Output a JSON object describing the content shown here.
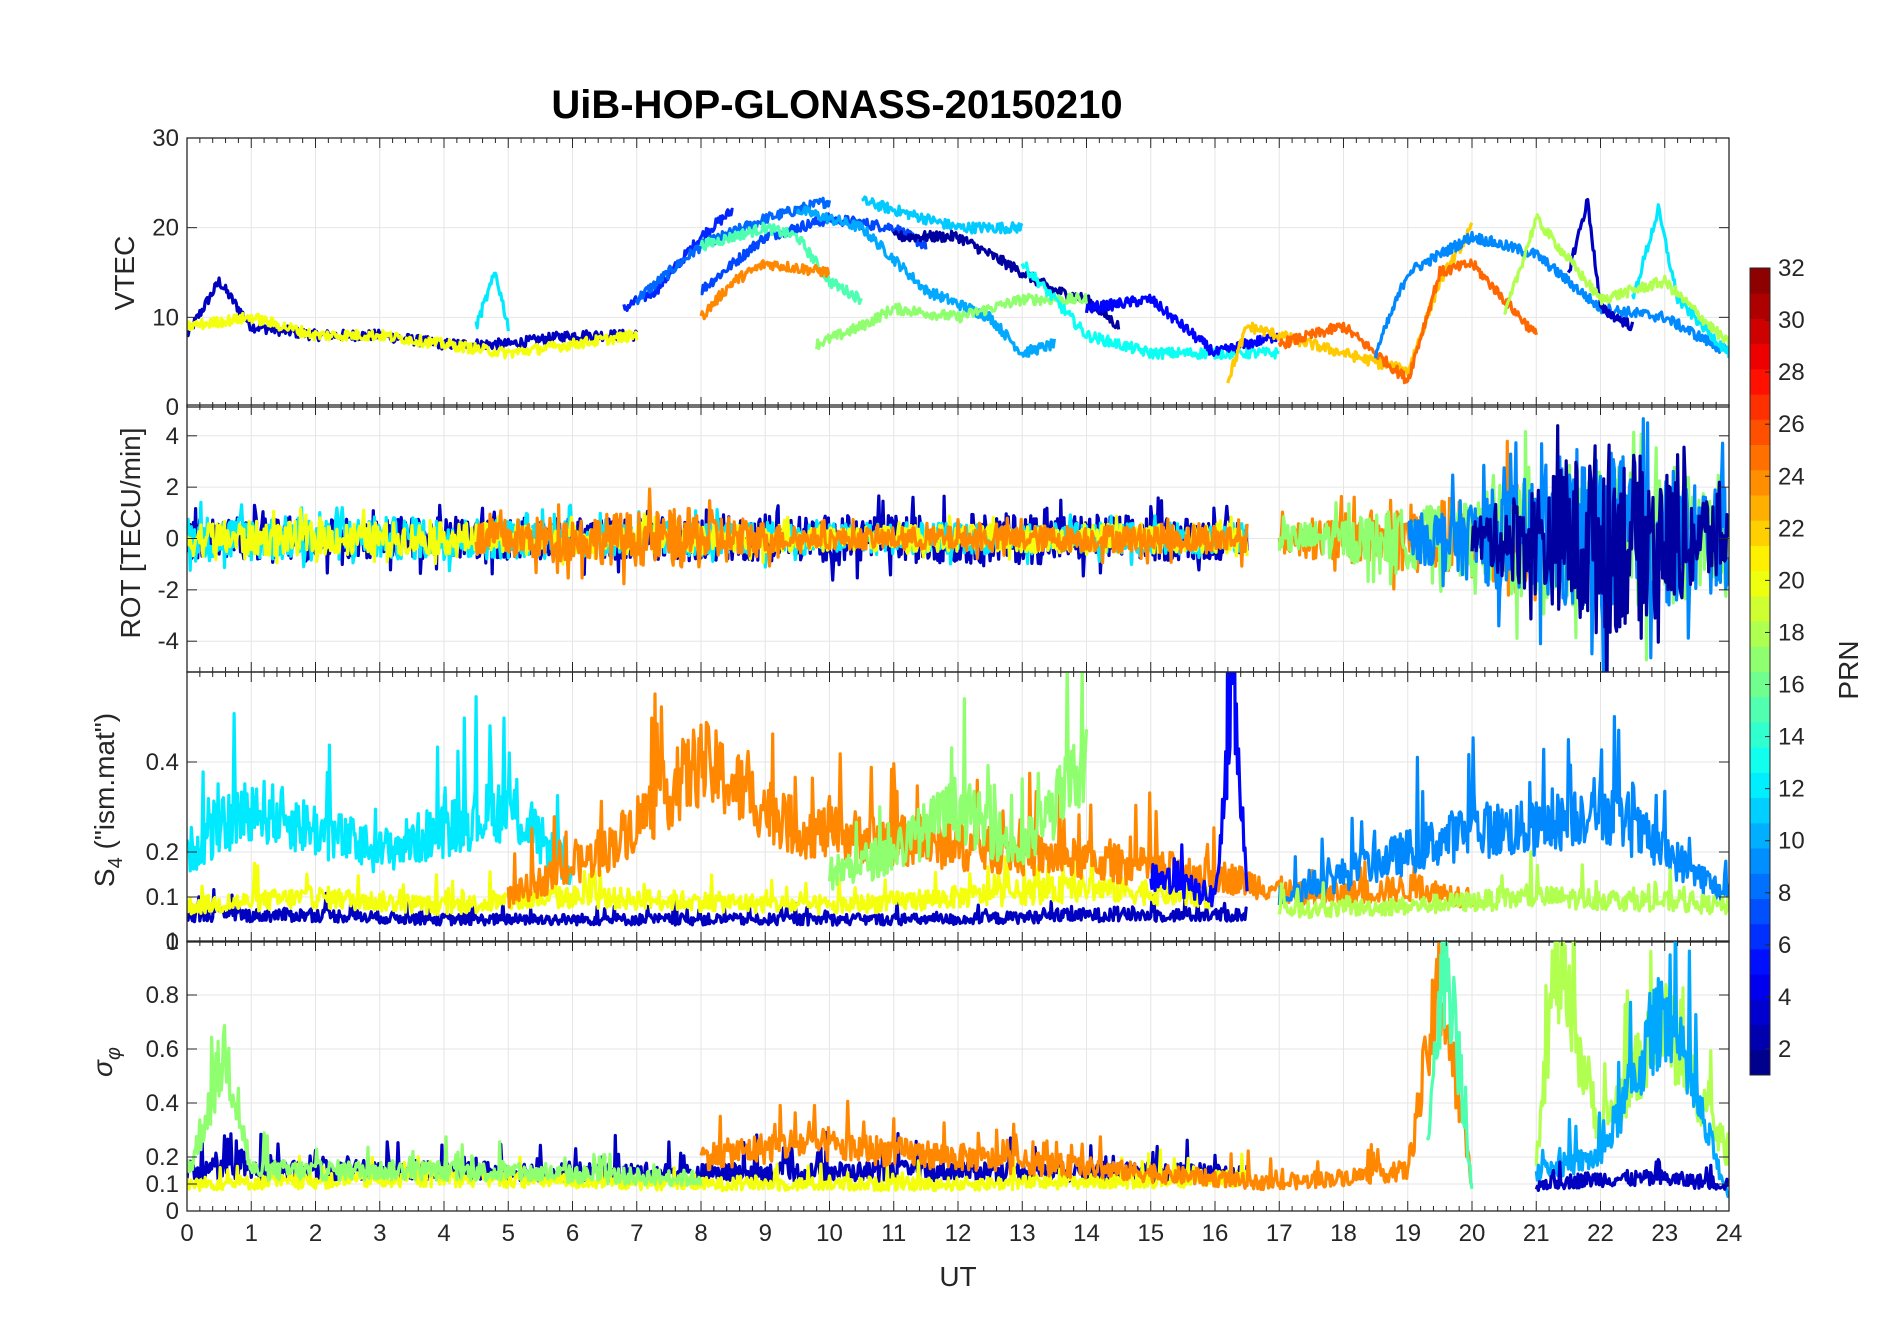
{
  "figure": {
    "title": "UiB-HOP-GLONASS-20150210",
    "xlabel": "UT",
    "x_ticks": [
      "0",
      "1",
      "2",
      "3",
      "4",
      "5",
      "6",
      "7",
      "8",
      "9",
      "10",
      "11",
      "12",
      "13",
      "14",
      "15",
      "16",
      "17",
      "18",
      "19",
      "20",
      "21",
      "22",
      "23",
      "24"
    ],
    "x_range": [
      0,
      24
    ]
  },
  "colorbar": {
    "label": "PRN",
    "range": [
      1,
      32
    ],
    "ticks": [
      "2",
      "4",
      "6",
      "8",
      "10",
      "12",
      "14",
      "16",
      "18",
      "20",
      "22",
      "24",
      "26",
      "28",
      "30",
      "32"
    ],
    "colormap": "jet",
    "levels": 32
  },
  "chart_data": [
    {
      "type": "line",
      "panel": "vtec",
      "ylabel": "VTEC",
      "ylim": [
        0,
        30
      ],
      "y_ticks": [
        "0",
        "10",
        "20",
        "30"
      ],
      "grid": true,
      "series": [
        {
          "prn": 3,
          "x": [
            0,
            0.5,
            1,
            2,
            3,
            4,
            5,
            6,
            6.5,
            7
          ],
          "y": [
            8,
            14,
            9,
            8,
            8,
            7,
            7,
            8,
            8,
            8
          ]
        },
        {
          "prn": 6,
          "x": [
            6.8,
            7.3,
            8,
            8.5
          ],
          "y": [
            11,
            13,
            19,
            22
          ]
        },
        {
          "prn": 8,
          "x": [
            7,
            8,
            9,
            9.5,
            10
          ],
          "y": [
            12,
            18,
            21,
            22,
            23
          ]
        },
        {
          "prn": 7,
          "x": [
            8,
            9,
            10,
            11,
            11.5
          ],
          "y": [
            13,
            19,
            21,
            20,
            18
          ]
        },
        {
          "prn": 11,
          "x": [
            10.5,
            11.5,
            12,
            13
          ],
          "y": [
            23,
            21,
            20,
            20
          ]
        },
        {
          "prn": 10,
          "x": [
            9.5,
            10.5,
            11.5,
            12.5,
            13,
            13.5
          ],
          "y": [
            22,
            20,
            13,
            10,
            6,
            7
          ]
        },
        {
          "prn": 2,
          "x": [
            11,
            12,
            12.5,
            13,
            13.5,
            14,
            14.5
          ],
          "y": [
            19,
            19,
            17,
            15,
            13,
            12,
            9
          ]
        },
        {
          "prn": 15,
          "x": [
            8,
            9,
            9.5,
            10,
            10.5
          ],
          "y": [
            18,
            20,
            19,
            14,
            12
          ]
        },
        {
          "prn": 17,
          "x": [
            9.8,
            10.5,
            11,
            12,
            13,
            14
          ],
          "y": [
            7,
            9,
            11,
            10,
            12,
            12
          ]
        },
        {
          "prn": 24,
          "x": [
            8,
            8.5,
            9,
            10
          ],
          "y": [
            10,
            14,
            16,
            15
          ]
        },
        {
          "prn": 12,
          "x": [
            4.5,
            4.8,
            5
          ],
          "y": [
            9,
            15,
            9
          ]
        },
        {
          "prn": 13,
          "x": [
            13,
            14,
            15,
            16,
            17
          ],
          "y": [
            16,
            8,
            6,
            6,
            6
          ]
        },
        {
          "prn": 5,
          "x": [
            14,
            15,
            16,
            17
          ],
          "y": [
            11,
            12,
            6,
            8
          ]
        },
        {
          "prn": 22,
          "x": [
            16.2,
            16.5,
            17,
            18,
            19,
            19.5,
            20
          ],
          "y": [
            3,
            9,
            8,
            6,
            4,
            14,
            20
          ]
        },
        {
          "prn": 25,
          "x": [
            17,
            18,
            19,
            19.5,
            20,
            21
          ],
          "y": [
            7,
            9,
            3,
            15,
            16,
            8
          ]
        },
        {
          "prn": 9,
          "x": [
            18.5,
            19,
            20,
            21,
            22,
            23,
            24
          ],
          "y": [
            6,
            15,
            19,
            17,
            11,
            10,
            6
          ]
        },
        {
          "prn": 3,
          "x": [
            21.5,
            21.8,
            22,
            22.5
          ],
          "y": [
            15,
            23,
            11,
            9
          ]
        },
        {
          "prn": 12,
          "x": [
            22.5,
            22.9,
            23.2,
            24
          ],
          "y": [
            12,
            22,
            12,
            6
          ]
        },
        {
          "prn": 18,
          "x": [
            20.5,
            21,
            22,
            23,
            24
          ],
          "y": [
            10,
            21,
            12,
            14,
            7
          ]
        },
        {
          "prn": 20,
          "x": [
            0,
            1,
            2,
            3,
            4,
            5,
            6,
            7
          ],
          "y": [
            9,
            10,
            8,
            8,
            7,
            6,
            7,
            8
          ]
        }
      ]
    },
    {
      "type": "line",
      "panel": "rot",
      "ylabel": "ROT [TECU/min]",
      "ylim": [
        -5.2,
        5.2
      ],
      "y_ticks": [
        "-4",
        "-2",
        "0",
        "2",
        "4"
      ],
      "grid": true,
      "series": [
        {
          "prn": 3,
          "x": [
            0,
            6,
            13.5,
            16.5
          ],
          "amplitude": [
            0.8,
            0.8,
            1.0,
            0.8
          ]
        },
        {
          "prn": 12,
          "x": [
            0,
            5,
            10,
            16.5
          ],
          "amplitude": [
            0.9,
            0.8,
            0.6,
            0.6
          ]
        },
        {
          "prn": 20,
          "x": [
            0,
            5,
            10,
            16.5
          ],
          "amplitude": [
            0.7,
            0.6,
            0.5,
            0.6
          ]
        },
        {
          "prn": 24,
          "x": [
            4.5,
            8,
            9.5,
            16.5
          ],
          "amplitude": [
            0.7,
            1.2,
            0.4,
            0.6
          ]
        },
        {
          "prn": 24,
          "x": [
            17,
            19.5,
            21
          ],
          "amplitude": [
            0.6,
            1.5,
            2.5
          ]
        },
        {
          "prn": 17,
          "x": [
            17,
            20,
            21,
            24
          ],
          "amplitude": [
            0.5,
            1.5,
            3.0,
            2.5
          ]
        },
        {
          "prn": 9,
          "x": [
            19,
            21,
            22,
            24
          ],
          "amplitude": [
            0.8,
            2.5,
            3.5,
            2.0
          ]
        },
        {
          "prn": 2,
          "x": [
            20,
            21.5,
            22,
            24
          ],
          "amplitude": [
            0.8,
            3.0,
            4.0,
            1.5
          ]
        }
      ]
    },
    {
      "type": "line",
      "panel": "s4",
      "ylabel": "S4 (\"ism.mat\")",
      "ylabel_main": "S",
      "ylabel_sub": "4",
      "ylabel_rest": " (\"ism.mat\")",
      "ylim": [
        0,
        0.6
      ],
      "y_ticks": [
        "0",
        "0.1",
        "0.2",
        "0.4"
      ],
      "grid": true,
      "series": [
        {
          "prn": 3,
          "x": [
            0,
            2,
            4,
            6,
            8,
            10,
            12,
            14,
            16.5
          ],
          "y": [
            0.06,
            0.06,
            0.05,
            0.05,
            0.05,
            0.05,
            0.05,
            0.06,
            0.06
          ]
        },
        {
          "prn": 12,
          "x": [
            0,
            1,
            2,
            3,
            4,
            5,
            6
          ],
          "y": [
            0.2,
            0.3,
            0.25,
            0.2,
            0.25,
            0.3,
            0.15
          ]
        },
        {
          "prn": 20,
          "x": [
            0,
            2,
            4,
            6,
            8,
            10,
            12,
            14,
            16
          ],
          "y": [
            0.08,
            0.1,
            0.08,
            0.1,
            0.09,
            0.08,
            0.1,
            0.12,
            0.1
          ]
        },
        {
          "prn": 24,
          "x": [
            5,
            6.5,
            8,
            9.5,
            16,
            17.5,
            19,
            20
          ],
          "y": [
            0.1,
            0.2,
            0.4,
            0.25,
            0.15,
            0.1,
            0.12,
            0.1
          ]
        },
        {
          "prn": 17,
          "x": [
            10,
            11,
            12,
            13,
            14
          ],
          "y": [
            0.15,
            0.2,
            0.3,
            0.2,
            0.4
          ]
        },
        {
          "prn": 9,
          "x": [
            17,
            18,
            19,
            20,
            21,
            22,
            23,
            24
          ],
          "y": [
            0.1,
            0.15,
            0.2,
            0.25,
            0.25,
            0.3,
            0.2,
            0.1
          ]
        },
        {
          "prn": 18,
          "x": [
            17,
            19,
            21,
            23,
            24
          ],
          "y": [
            0.07,
            0.08,
            0.1,
            0.09,
            0.08
          ]
        },
        {
          "prn": 5,
          "x": [
            15,
            16,
            16.3,
            16.5
          ],
          "y": [
            0.15,
            0.1,
            0.55,
            0.1
          ]
        }
      ]
    },
    {
      "type": "line",
      "panel": "sigma_phi",
      "ylabel": "σφ",
      "ylabel_main": "σ",
      "ylabel_sub": "φ",
      "ylim": [
        0,
        1.0
      ],
      "y_ticks": [
        "0",
        "0.1",
        "0.2",
        "0.4",
        "0.6",
        "0.8",
        "1"
      ],
      "grid": true,
      "series": [
        {
          "prn": 3,
          "x": [
            0,
            4,
            8,
            12,
            16.5
          ],
          "y": [
            0.15,
            0.15,
            0.14,
            0.15,
            0.14
          ]
        },
        {
          "prn": 20,
          "x": [
            0,
            4,
            8,
            12,
            16.5
          ],
          "y": [
            0.1,
            0.12,
            0.1,
            0.1,
            0.12
          ]
        },
        {
          "prn": 17,
          "x": [
            0,
            0.6,
            1,
            4,
            8
          ],
          "y": [
            0.12,
            0.6,
            0.15,
            0.15,
            0.12
          ]
        },
        {
          "prn": 24,
          "x": [
            8,
            9.5,
            17,
            19,
            19.5,
            20
          ],
          "y": [
            0.2,
            0.25,
            0.1,
            0.15,
            0.85,
            0.1
          ]
        },
        {
          "prn": 15,
          "x": [
            19.3,
            19.6,
            20
          ],
          "y": [
            0.3,
            0.97,
            0.1
          ]
        },
        {
          "prn": 18,
          "x": [
            21,
            21.3,
            22,
            23,
            24
          ],
          "y": [
            0.2,
            0.93,
            0.3,
            0.7,
            0.2
          ]
        },
        {
          "prn": 10,
          "x": [
            21,
            22,
            23,
            24
          ],
          "y": [
            0.15,
            0.2,
            0.75,
            0.05
          ]
        },
        {
          "prn": 3,
          "x": [
            21,
            22,
            23,
            24
          ],
          "y": [
            0.1,
            0.12,
            0.12,
            0.1
          ]
        }
      ]
    }
  ]
}
